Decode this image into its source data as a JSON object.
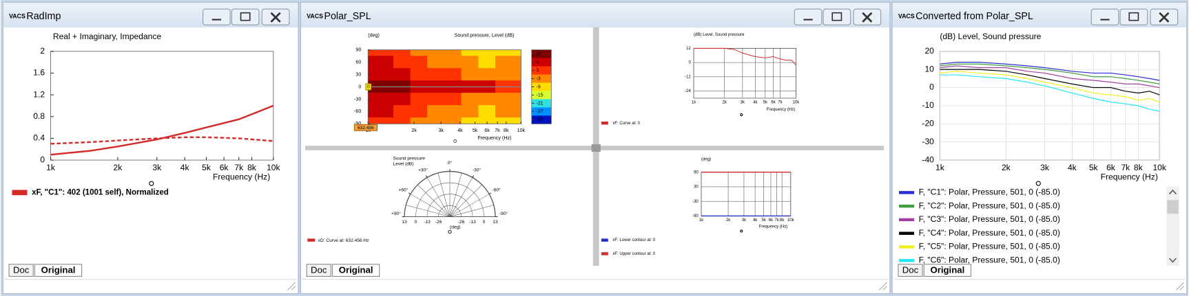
{
  "app_logo": "VACS",
  "windows": [
    {
      "title": "RadImp",
      "tabs": [
        "Doc",
        "Original"
      ],
      "chart_data": {
        "type": "line",
        "title": "Real + Imaginary, Impedance",
        "xlabel": "Frequency  (Hz)",
        "log_x": true,
        "grid": false,
        "xlim": [
          1000,
          10000
        ],
        "xticks": [
          {
            "value": 1000,
            "label": "1k"
          },
          {
            "value": 2000,
            "label": "2k"
          },
          {
            "value": 3000,
            "label": "3k"
          },
          {
            "value": 4000,
            "label": "4k"
          },
          {
            "value": 5000,
            "label": "5k"
          },
          {
            "value": 6000,
            "label": "6k"
          },
          {
            "value": 7000,
            "label": "7k"
          },
          {
            "value": 8000,
            "label": "8k"
          },
          {
            "value": 10000,
            "label": "10k"
          }
        ],
        "ylim": [
          0,
          2
        ],
        "yticks": [
          0,
          0.4,
          0.8,
          1.2,
          1.6,
          2
        ],
        "x": [
          1000,
          1500,
          2000,
          3000,
          4000,
          5000,
          7000,
          10000
        ],
        "series": [
          {
            "name": "xF, \"C1\": 402 (1001 self), Normalized",
            "color": "#d42a2a",
            "values": [
              0.1,
              0.17,
              0.25,
              0.38,
              0.5,
              0.6,
              0.75,
              1.0
            ]
          },
          {
            "color": "#d42a2a",
            "dash": true,
            "values": [
              0.3,
              0.33,
              0.36,
              0.4,
              0.42,
              0.42,
              0.4,
              0.35
            ]
          }
        ]
      }
    },
    {
      "title": "Polar_SPL",
      "tabs": [
        "Doc",
        "Original"
      ],
      "charts": [
        {
          "type": "heatmap",
          "title": "Sound pressure, Level  (dB)",
          "ylabel": "(deg)",
          "xlabel": "Frequency  (Hz)",
          "log_x": true,
          "xlim": [
            1000,
            10000
          ],
          "xticks": [
            {
              "value": 1000,
              "label": "1k"
            },
            {
              "value": 2000,
              "label": "2k"
            },
            {
              "value": 3000,
              "label": "3k"
            },
            {
              "value": 4000,
              "label": "4k"
            },
            {
              "value": 5000,
              "label": "5k"
            },
            {
              "value": 6000,
              "label": "6k"
            },
            {
              "value": 7000,
              "label": "7k"
            },
            {
              "value": 8000,
              "label": "8k"
            },
            {
              "value": 10000,
              "label": "10k"
            }
          ],
          "ylim": [
            -90,
            90
          ],
          "yticks": [
            90,
            60,
            30,
            0,
            -30,
            -60,
            -90
          ],
          "x": [
            1000,
            1290,
            1670,
            2150,
            2780,
            3590,
            4640,
            5990,
            7740
          ],
          "y": [
            90,
            60,
            30,
            0,
            -30,
            -60,
            -90
          ],
          "values": [
            [
              4,
              4,
              1,
              -2,
              -5,
              -5,
              -8,
              -11,
              -8
            ],
            [
              7,
              7,
              4,
              1,
              -2,
              -2,
              -5,
              -8,
              -5
            ],
            [
              10,
              10,
              7,
              4,
              4,
              1,
              -2,
              -2,
              -2
            ],
            [
              14,
              14,
              14,
              10,
              10,
              10,
              7,
              7,
              4
            ],
            [
              10,
              10,
              7,
              4,
              4,
              1,
              -2,
              -2,
              -2
            ],
            [
              7,
              7,
              4,
              1,
              -2,
              -2,
              -5,
              -8,
              -5
            ],
            [
              4,
              4,
              1,
              -2,
              -5,
              -5,
              -8,
              -11,
              -8
            ]
          ],
          "x_cursor": 632.456,
          "y_cursor": 0,
          "colorbar": {
            "zlim": [
              18,
              -36
            ],
            "ticks": [
              15,
              9,
              3,
              -3,
              -9,
              -15,
              -21,
              -27,
              -33
            ],
            "colors": [
              "#800000",
              "#cc0000",
              "#ff3300",
              "#ff8800",
              "#ffdd00",
              "#d8ff30",
              "#30e0e0",
              "#0090ff",
              "#0010c0"
            ]
          }
        },
        {
          "type": "line",
          "title": "(dB)  Level, Sound pressure",
          "xlabel": "Frequency  (Hz)",
          "log_x": true,
          "grid": true,
          "xlim": [
            1000,
            10000
          ],
          "xticks": [
            {
              "value": 1000,
              "label": "1k"
            },
            {
              "value": 2000,
              "label": "2k"
            },
            {
              "value": 3000,
              "label": "3k"
            },
            {
              "value": 4000,
              "label": "4k"
            },
            {
              "value": 5000,
              "label": "5k"
            },
            {
              "value": 6000,
              "label": "6k"
            },
            {
              "value": 7000,
              "label": "7k"
            },
            {
              "value": 10000,
              "label": "10k"
            }
          ],
          "ylim": [
            -30,
            12
          ],
          "yticks": [
            12,
            0,
            -12,
            -24
          ],
          "x": [
            1000,
            1500,
            2000,
            2500,
            3000,
            4000,
            5000,
            6000,
            7000,
            8000,
            9000,
            10000
          ],
          "series": [
            {
              "name": "xF: Curve at: 0",
              "color": "#d42a2a",
              "values": [
                12,
                12,
                12,
                11,
                8,
                5,
                4,
                5,
                3,
                2,
                2,
                -2
              ]
            }
          ]
        },
        {
          "type": "polar",
          "title": [
            "Sound pressure",
            "Level  (dB)"
          ],
          "xlabel": "(deg)",
          "rlim": [
            -39,
            13
          ],
          "rticks": [
            13,
            0,
            -13,
            -26
          ],
          "angle_ticks": [
            {
              "value": 0,
              "label": "0°"
            },
            {
              "value": 30,
              "label": "+30°"
            },
            {
              "value": -30,
              "label": "-30°"
            },
            {
              "value": 60,
              "label": "+60°"
            },
            {
              "value": -60,
              "label": "-60°"
            },
            {
              "value": 90,
              "label": "+90°"
            },
            {
              "value": -90,
              "label": "-90°"
            }
          ],
          "series": [
            {
              "name": "xD: Curve at: 632.456 Hz",
              "color": "#d42a2a"
            }
          ]
        },
        {
          "type": "line",
          "ylabel": "(deg)",
          "xlabel": "Frequency  (Hz)",
          "log_x": true,
          "grid": true,
          "xlim": [
            1000,
            10000
          ],
          "xticks": [
            {
              "value": 1000,
              "label": "1k"
            },
            {
              "value": 2000,
              "label": "2k"
            },
            {
              "value": 3000,
              "label": "3k"
            },
            {
              "value": 4000,
              "label": "4k"
            },
            {
              "value": 5000,
              "label": "5k"
            },
            {
              "value": 6000,
              "label": "6k"
            },
            {
              "value": 7000,
              "label": "7k"
            },
            {
              "value": 8000,
              "label": "8k"
            },
            {
              "value": 10000,
              "label": "10k"
            }
          ],
          "ylim": [
            -90,
            90
          ],
          "yticks": [
            90,
            30,
            -30,
            -90
          ],
          "x": [
            1000,
            10000
          ],
          "series": [
            {
              "name": "xF: Lower contour at: 0",
              "color": "#2030c0",
              "values": [
                -90,
                -90
              ]
            },
            {
              "name": "xF: Upper contour at: 0",
              "color": "#d42a2a",
              "values": [
                90,
                90
              ]
            }
          ]
        }
      ]
    },
    {
      "title": "Converted from Polar_SPL",
      "tabs": [
        "Doc",
        "Original"
      ],
      "chart_data": {
        "type": "line",
        "title": "(dB)  Level, Sound pressure",
        "xlabel": "Frequency  (Hz)",
        "log_x": true,
        "grid": true,
        "xlim": [
          1000,
          10000
        ],
        "xticks": [
          {
            "value": 1000,
            "label": "1k"
          },
          {
            "value": 2000,
            "label": "2k"
          },
          {
            "value": 3000,
            "label": "3k"
          },
          {
            "value": 4000,
            "label": "4k"
          },
          {
            "value": 5000,
            "label": "5k"
          },
          {
            "value": 6000,
            "label": "6k"
          },
          {
            "value": 7000,
            "label": "7k"
          },
          {
            "value": 8000,
            "label": "8k"
          },
          {
            "value": 10000,
            "label": "10k"
          }
        ],
        "ylim": [
          -40,
          20
        ],
        "yticks": [
          20,
          10,
          0,
          -10,
          -20,
          -30,
          -40
        ],
        "x": [
          1000,
          1200,
          1500,
          2000,
          2500,
          3000,
          4000,
          5000,
          6000,
          7000,
          8000,
          9000,
          10000
        ],
        "series": [
          {
            "name": "F, \"C1\": Polar, Pressure, 501, 0 (-85.0)",
            "color": "#2b2bd6",
            "values": [
              13,
              14,
              14,
              13,
              12,
              11,
              9,
              8,
              8,
              7,
              6,
              5,
              4
            ]
          },
          {
            "name": "F, \"C2\": Polar, Pressure, 501, 0 (-85.0)",
            "color": "#3fa03f",
            "values": [
              12,
              13,
              13,
              12,
              11,
              10,
              8,
              6,
              6,
              5,
              4,
              3,
              2
            ]
          },
          {
            "name": "F, \"C3\": Polar, Pressure, 501, 0 (-85.0)",
            "color": "#a040a0",
            "values": [
              11,
              12,
              11,
              11,
              9,
              8,
              5,
              4,
              3,
              2,
              2,
              1,
              0
            ]
          },
          {
            "name": "F, \"C4\": Polar, Pressure, 501, 0 (-85.0)",
            "color": "#000000",
            "values": [
              10,
              10,
              10,
              9,
              7,
              5,
              2,
              0,
              0,
              -2,
              -3,
              -2,
              -4
            ]
          },
          {
            "name": "F, \"C5\": Polar, Pressure, 501, 0 (-85.0)",
            "color": "#f0f020",
            "values": [
              8,
              9,
              8,
              7,
              5,
              3,
              0,
              -3,
              -4,
              -5,
              -7,
              -6,
              -8
            ]
          },
          {
            "name": "F, \"C6\": Polar, Pressure, 501, 0 (-85.0)",
            "color": "#20e8f0",
            "values": [
              7,
              7,
              6,
              5,
              3,
              1,
              -3,
              -6,
              -8,
              -9,
              -10,
              -12,
              -13
            ]
          }
        ]
      }
    }
  ]
}
